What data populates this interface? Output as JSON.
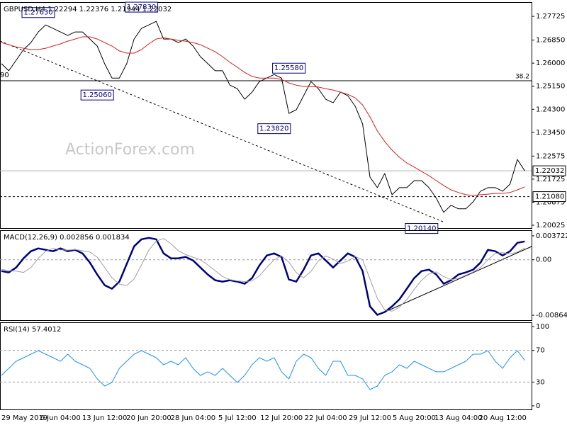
{
  "chart_data": [
    {
      "type": "line",
      "title": "GBPUSD,H4  1.22294 1.22376 1.21944 1.22032",
      "watermark": "ActionForex.com",
      "ylim": [
        1.1992,
        1.2825
      ],
      "yticks": [
        1.27725,
        {
          "value": 1.2685,
          "label": "1.26850"
        },
        {
          "value": 1.26,
          "label": "1.26000"
        },
        {
          "value": 1.2515,
          "label": "1.25150"
        },
        {
          "value": 1.243,
          "label": "1.24300"
        },
        {
          "value": 1.2345,
          "label": "1.23450"
        },
        1.22575,
        1.21725,
        1.20875,
        1.20025
      ],
      "series": [
        {
          "color": "#000000",
          "values": [
            1.2598,
            1.2572,
            1.2611,
            1.265,
            1.2676,
            1.2715,
            1.2741,
            1.2728,
            1.2715,
            1.2702,
            1.2715,
            1.2715,
            1.2689,
            1.2663,
            1.2598,
            1.2545,
            1.2545,
            1.2598,
            1.2689,
            1.2728,
            1.2741,
            1.2754,
            1.2689,
            1.2689,
            1.2676,
            1.2689,
            1.2663,
            1.2624,
            1.2598,
            1.2572,
            1.2572,
            1.2519,
            1.2506,
            1.2467,
            1.2493,
            1.2532,
            1.2545,
            1.2558,
            1.2545,
            1.2415,
            1.2428,
            1.248,
            1.2532,
            1.2506,
            1.2467,
            1.2454,
            1.2493,
            1.248,
            1.2441,
            1.2376,
            1.218,
            1.2141,
            1.2193,
            1.2115,
            1.2141,
            1.2141,
            1.2167,
            1.2167,
            1.2141,
            1.2102,
            1.205,
            1.2076,
            1.2063,
            1.2063,
            1.2089,
            1.2128,
            1.2141,
            1.2141,
            1.2128,
            1.2154,
            1.2245,
            1.2203
          ]
        },
        {
          "color": "#d62020",
          "values": [
            1.2676,
            1.2668,
            1.266,
            1.2655,
            1.265,
            1.265,
            1.2655,
            1.2663,
            1.2671,
            1.2681,
            1.2689,
            1.2697,
            1.2697,
            1.2689,
            1.2676,
            1.2663,
            1.2645,
            1.2637,
            1.2637,
            1.265,
            1.2671,
            1.2689,
            1.2694,
            1.2689,
            1.2684,
            1.2681,
            1.2676,
            1.2668,
            1.2655,
            1.2642,
            1.2624,
            1.2603,
            1.2585,
            1.2566,
            1.2551,
            1.2545,
            1.2545,
            1.2545,
            1.254,
            1.2527,
            1.2519,
            1.2514,
            1.2514,
            1.2512,
            1.2506,
            1.2501,
            1.2493,
            1.2485,
            1.2472,
            1.2446,
            1.2402,
            1.235,
            1.2311,
            1.2279,
            1.2253,
            1.2232,
            1.2217,
            1.2201,
            1.2185,
            1.2167,
            1.2149,
            1.2133,
            1.2123,
            1.2115,
            1.2112,
            1.2115,
            1.2117,
            1.212,
            1.212,
            1.2123,
            1.2133,
            1.2144
          ]
        }
      ],
      "fib_line": {
        "price": 1.2535,
        "text": "38.2"
      },
      "clipped_text": "90",
      "last_price": 1.22032,
      "support": {
        "value": 1.2108,
        "label": "1.21080"
      },
      "annotations": [
        {
          "label": "1.27630",
          "value": 1.2763,
          "index": 5,
          "kind": "high"
        },
        {
          "label": "1.27830",
          "value": 1.2783,
          "index": 19,
          "kind": "high"
        },
        {
          "label": "1.25060",
          "value": 1.2506,
          "index": 13,
          "kind": "low"
        },
        {
          "label": "1.25580",
          "value": 1.2558,
          "index": 39,
          "kind": "high"
        },
        {
          "label": "1.23820",
          "value": 1.2382,
          "index": 37,
          "kind": "low"
        },
        {
          "label": "1.20140",
          "value": 1.2014,
          "index": 57,
          "kind": "low"
        }
      ]
    },
    {
      "type": "line",
      "title": "MACD(12,26,9) 0.002856 0.001834",
      "ylim": [
        -0.00941,
        0.0046
      ],
      "yticks": [
        0.003722,
        {
          "value": 0,
          "label": "0.00"
        },
        -0.008643
      ],
      "levels": [
        0
      ],
      "series": [
        {
          "color": "#000080",
          "values": [
            -0.00176,
            -0.00198,
            -0.00121,
            0.00022,
            0.00132,
            0.00176,
            0.00154,
            0.00132,
            0.00176,
            0.00132,
            0.00154,
            0.00099,
            -0.00044,
            -0.00231,
            -0.00396,
            -0.00451,
            -0.00341,
            -0.00066,
            0.00209,
            0.00319,
            0.00341,
            0.00319,
            0.00099,
            0.00022,
            0.00022,
            0.00044,
            -0.00011,
            -0.00121,
            -0.00231,
            -0.00319,
            -0.00341,
            -0.00319,
            -0.00341,
            -0.00374,
            -0.00286,
            -0.00088,
            0.00066,
            0.00099,
            0.00044,
            -0.00308,
            -0.00341,
            -0.00154,
            0.00066,
            0.00099,
            -0.00011,
            -0.00121,
            -0.00011,
            0.00099,
            0.00044,
            -0.00176,
            -0.00726,
            -0.00858,
            -0.00814,
            -0.00726,
            -0.00616,
            -0.00451,
            -0.00286,
            -0.00176,
            -0.00154,
            -0.00231,
            -0.00374,
            -0.00319,
            -0.00231,
            -0.00198,
            -0.00154,
            -0.00044,
            0.00154,
            0.00132,
            0.00066,
            0.00132,
            0.00264,
            0.00286
          ]
        },
        {
          "color": "#a0a0a0",
          "values": [
            -0.0015,
            -0.0017,
            -0.00176,
            -0.00198,
            -0.00121,
            0.00022,
            0.00132,
            0.00176,
            0.00154,
            0.0015,
            0.0016,
            0.0014,
            0.0012,
            0.0004,
            -0.0012,
            -0.0028,
            -0.0038,
            -0.004,
            -0.003,
            -0.0008,
            0.0015,
            0.0029,
            0.0033,
            0.0025,
            0.0014,
            0.0008,
            0.0004,
            0.0,
            -0.0008,
            -0.0017,
            -0.0026,
            -0.0031,
            -0.0033,
            -0.0034,
            -0.0033,
            -0.0025,
            -0.0012,
            0.0,
            0.0006,
            -0.0004,
            -0.002,
            -0.0028,
            -0.0018,
            -0.0002,
            0.0006,
            0.0001,
            -0.0006,
            -0.0002,
            0.0005,
            0.0,
            -0.003,
            -0.006,
            -0.0078,
            -0.008,
            -0.0074,
            -0.0062,
            -0.0046,
            -0.0032,
            -0.0022,
            -0.0019,
            -0.0026,
            -0.0031,
            -0.0029,
            -0.0024,
            -0.0019,
            -0.0012,
            0.0,
            0.001,
            0.0011,
            0.0009,
            0.0012,
            0.00183
          ]
        }
      ]
    },
    {
      "type": "line",
      "title": "RSI(14) 57.4012",
      "ylim": [
        -4.5,
        105.4
      ],
      "yticks": [
        100,
        70,
        30,
        0
      ],
      "levels": [
        70,
        30
      ],
      "categories": [
        null,
        null,
        "29 May 2019",
        null,
        null,
        null,
        null,
        null,
        "6 Jun 04:00",
        null,
        null,
        null,
        null,
        null,
        "13 Jun 12:00",
        null,
        null,
        null,
        null,
        null,
        "20 Jun 20:00",
        null,
        null,
        null,
        null,
        null,
        "28 Jun 04:00",
        null,
        null,
        null,
        null,
        null,
        "5 Jul 12:00",
        null,
        null,
        null,
        null,
        null,
        "12 Jul 20:00",
        null,
        null,
        null,
        null,
        null,
        "22 Jul 04:00",
        null,
        null,
        null,
        null,
        null,
        "29 Jul 12:00",
        null,
        null,
        null,
        null,
        null,
        "5 Aug 20:00",
        null,
        null,
        null,
        null,
        null,
        "13 Aug 04:00",
        null,
        null,
        null,
        null,
        null,
        "20 Aug 12:00",
        null,
        null,
        null
      ],
      "series": [
        {
          "color": "#1e90ff",
          "values": [
            38.4,
            47.3,
            56.3,
            60.7,
            65.2,
            69.6,
            65.2,
            60.7,
            56.3,
            65.2,
            56.3,
            51.8,
            47.3,
            33.9,
            25.0,
            29.5,
            47.3,
            56.3,
            65.2,
            69.6,
            65.2,
            60.7,
            51.8,
            56.3,
            51.8,
            60.7,
            47.3,
            38.4,
            42.9,
            38.4,
            47.3,
            38.4,
            29.5,
            38.4,
            51.8,
            60.7,
            56.3,
            60.7,
            42.9,
            33.9,
            56.3,
            65.2,
            60.7,
            47.3,
            38.4,
            56.3,
            56.3,
            38.4,
            38.4,
            33.9,
            20.5,
            25.0,
            38.4,
            42.9,
            51.8,
            47.3,
            56.3,
            51.8,
            47.3,
            42.9,
            42.9,
            47.3,
            51.8,
            56.3,
            65.2,
            65.2,
            69.6,
            56.3,
            47.3,
            60.7,
            69.6,
            57.4
          ]
        }
      ]
    }
  ]
}
